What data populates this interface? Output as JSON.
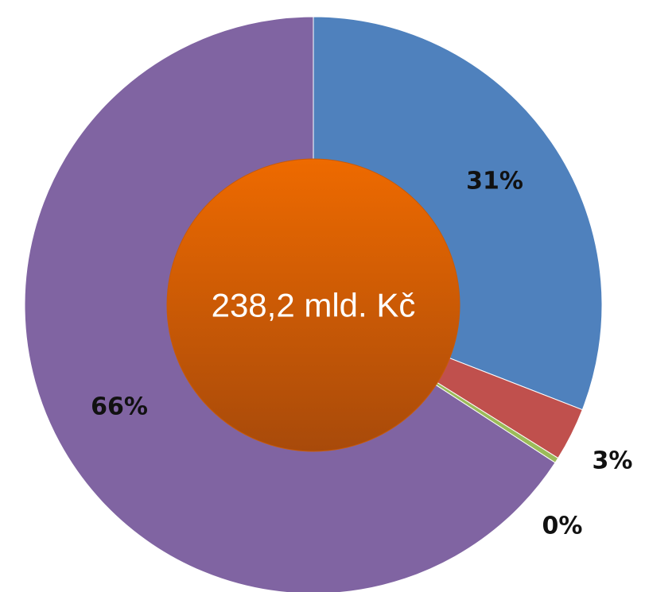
{
  "chart_data": {
    "type": "pie",
    "categories": [
      "",
      "",
      "",
      ""
    ],
    "values": [
      31,
      3,
      0.3,
      66
    ],
    "data_labels": [
      "31%",
      "3%",
      "0%",
      "66%"
    ],
    "colors": [
      "#4F81BD",
      "#C0504D",
      "#9BBB59",
      "#8064A2"
    ],
    "center_label": "238,2 mld. Kč",
    "center_color": "#E46C0A",
    "title": "",
    "legend": "none"
  }
}
